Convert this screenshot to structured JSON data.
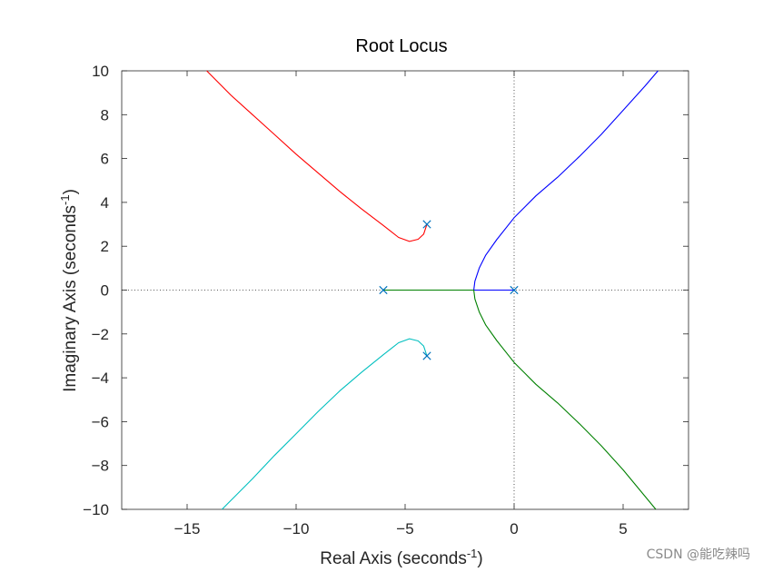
{
  "chart_data": {
    "type": "line",
    "title": "Root Locus",
    "xlabel": "Real Axis (seconds",
    "ylabel": "Imaginary Axis (seconds",
    "label_exponent": "-1",
    "label_suffix": ")",
    "xlim": [
      -18,
      8
    ],
    "ylim": [
      -10,
      10
    ],
    "x_ticks": [
      -15,
      -10,
      -5,
      0,
      5
    ],
    "y_ticks": [
      -10,
      -8,
      -6,
      -4,
      -2,
      0,
      2,
      4,
      6,
      8,
      10
    ],
    "grid": false,
    "axis_lines": {
      "x": 0,
      "y": 0,
      "style": "dotted"
    },
    "poles": [
      {
        "x": -6,
        "y": 0
      },
      {
        "x": -4,
        "y": 3
      },
      {
        "x": -4,
        "y": -3
      },
      {
        "x": 0,
        "y": 0
      }
    ],
    "series": [
      {
        "color": "#ff0000",
        "points": [
          [
            -4,
            3
          ],
          [
            -4.15,
            2.55
          ],
          [
            -4.4,
            2.32
          ],
          [
            -4.8,
            2.22
          ],
          [
            -5.3,
            2.4
          ],
          [
            -6,
            2.95
          ],
          [
            -7,
            3.7
          ],
          [
            -8,
            4.5
          ],
          [
            -9,
            5.35
          ],
          [
            -10,
            6.2
          ],
          [
            -11,
            7.1
          ],
          [
            -12,
            8.0
          ],
          [
            -13,
            8.9
          ],
          [
            -14.1,
            10
          ]
        ]
      },
      {
        "color": "#00bfbf",
        "points": [
          [
            -4,
            -3
          ],
          [
            -4.15,
            -2.55
          ],
          [
            -4.4,
            -2.32
          ],
          [
            -4.8,
            -2.22
          ],
          [
            -5.3,
            -2.4
          ],
          [
            -6,
            -2.95
          ],
          [
            -7,
            -3.75
          ],
          [
            -8,
            -4.6
          ],
          [
            -9,
            -5.55
          ],
          [
            -10,
            -6.55
          ],
          [
            -11,
            -7.55
          ],
          [
            -12,
            -8.6
          ],
          [
            -13.1,
            -9.7
          ],
          [
            -13.4,
            -10
          ]
        ]
      },
      {
        "color": "#0000ff",
        "points": [
          [
            0,
            0
          ],
          [
            -1.85,
            0
          ],
          [
            -1.8,
            0.4
          ],
          [
            -1.6,
            1.0
          ],
          [
            -1.3,
            1.6
          ],
          [
            -0.8,
            2.3
          ],
          [
            0,
            3.3
          ],
          [
            0.5,
            3.8
          ],
          [
            1,
            4.3
          ],
          [
            2,
            5.15
          ],
          [
            3,
            6.1
          ],
          [
            4,
            7.1
          ],
          [
            5,
            8.2
          ],
          [
            6,
            9.3
          ],
          [
            6.6,
            10
          ]
        ]
      },
      {
        "color": "#008000",
        "points": [
          [
            -6,
            0
          ],
          [
            -1.85,
            0
          ],
          [
            -1.8,
            -0.4
          ],
          [
            -1.6,
            -1.0
          ],
          [
            -1.3,
            -1.6
          ],
          [
            -0.8,
            -2.3
          ],
          [
            0,
            -3.3
          ],
          [
            0.5,
            -3.8
          ],
          [
            1,
            -4.3
          ],
          [
            2,
            -5.15
          ],
          [
            3,
            -6.1
          ],
          [
            4,
            -7.1
          ],
          [
            5,
            -8.2
          ],
          [
            6,
            -9.4
          ],
          [
            6.5,
            -10
          ]
        ]
      }
    ]
  },
  "watermark": "CSDN @能吃辣吗"
}
